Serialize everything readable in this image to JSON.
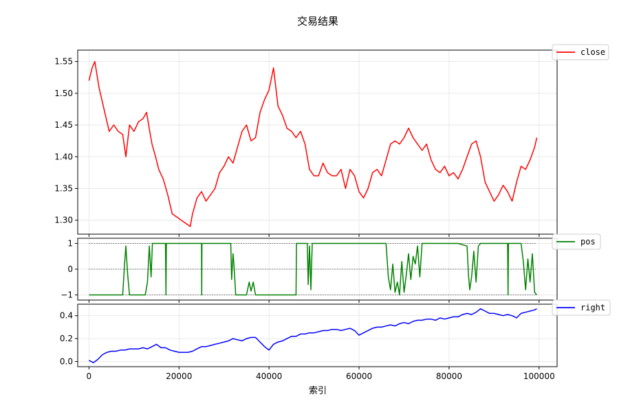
{
  "figure": {
    "title": "交易结果",
    "xlabel": "索引"
  },
  "chart_data": [
    {
      "type": "line",
      "name": "close-panel",
      "xlim": [
        -2500,
        104000
      ],
      "ylim": [
        1.278,
        1.568
      ],
      "yticks": [
        1.3,
        1.35,
        1.4,
        1.45,
        1.5,
        1.55
      ],
      "ytick_labels": [
        "1.30",
        "1.35",
        "1.40",
        "1.45",
        "1.50",
        "1.55"
      ],
      "grid": true,
      "legend_position": "outside-top-right",
      "series": [
        {
          "name": "close",
          "color": "#ff0000",
          "x": [
            0,
            700,
            1300,
            2200,
            3500,
            4500,
            5500,
            6500,
            7500,
            8200,
            9000,
            10000,
            11000,
            12000,
            12800,
            13500,
            14000,
            14800,
            15500,
            16500,
            17500,
            18500,
            19500,
            20500,
            21500,
            22500,
            23000,
            24000,
            25000,
            26000,
            27000,
            28000,
            29000,
            30000,
            31000,
            32000,
            33000,
            34000,
            35000,
            36000,
            37000,
            38000,
            39000,
            40000,
            41000,
            42000,
            43000,
            44000,
            45000,
            46000,
            47000,
            48000,
            49000,
            50000,
            51000,
            52000,
            53000,
            54000,
            55000,
            56000,
            57000,
            58000,
            59000,
            60000,
            61000,
            62000,
            63000,
            64000,
            65000,
            66000,
            67000,
            68000,
            69000,
            70000,
            71000,
            72000,
            73000,
            74000,
            75000,
            76000,
            77000,
            78000,
            79000,
            80000,
            81000,
            82000,
            83000,
            84000,
            85000,
            86000,
            87000,
            88000,
            89000,
            90000,
            91000,
            92000,
            93000,
            94000,
            95000,
            96000,
            97000,
            98000,
            99000,
            99500
          ],
          "y": [
            1.52,
            1.54,
            1.55,
            1.51,
            1.47,
            1.44,
            1.45,
            1.44,
            1.435,
            1.4,
            1.45,
            1.44,
            1.455,
            1.46,
            1.47,
            1.44,
            1.42,
            1.4,
            1.38,
            1.365,
            1.34,
            1.31,
            1.305,
            1.3,
            1.295,
            1.29,
            1.31,
            1.335,
            1.345,
            1.33,
            1.34,
            1.35,
            1.375,
            1.385,
            1.4,
            1.39,
            1.415,
            1.44,
            1.45,
            1.425,
            1.43,
            1.47,
            1.49,
            1.505,
            1.54,
            1.48,
            1.465,
            1.445,
            1.44,
            1.43,
            1.44,
            1.42,
            1.38,
            1.37,
            1.37,
            1.39,
            1.375,
            1.37,
            1.37,
            1.38,
            1.35,
            1.38,
            1.37,
            1.345,
            1.335,
            1.35,
            1.375,
            1.38,
            1.37,
            1.395,
            1.42,
            1.425,
            1.42,
            1.43,
            1.445,
            1.43,
            1.42,
            1.41,
            1.42,
            1.395,
            1.38,
            1.375,
            1.385,
            1.37,
            1.375,
            1.365,
            1.38,
            1.4,
            1.42,
            1.425,
            1.4,
            1.36,
            1.345,
            1.33,
            1.34,
            1.355,
            1.345,
            1.33,
            1.36,
            1.385,
            1.38,
            1.395,
            1.415,
            1.43
          ]
        }
      ]
    },
    {
      "type": "line",
      "name": "pos-panel",
      "xlim": [
        -2500,
        104000
      ],
      "ylim": [
        -1.2,
        1.2
      ],
      "yticks": [
        -1,
        0,
        1
      ],
      "ytick_labels": [
        "−1",
        "0",
        "1"
      ],
      "reference_lines": [
        -1,
        0,
        1
      ],
      "grid": true,
      "legend_position": "outside-top-right",
      "series": [
        {
          "name": "pos",
          "color": "#008000",
          "x": [
            0,
            7500,
            7900,
            8200,
            8600,
            9000,
            12500,
            13000,
            13400,
            13800,
            14100,
            14400,
            17000,
            17100,
            17200,
            25000,
            25050,
            25100,
            30000,
            31500,
            31700,
            32000,
            32200,
            32600,
            35000,
            35600,
            36000,
            36500,
            37000,
            46000,
            46100,
            46200,
            48500,
            48700,
            49000,
            49300,
            49600,
            66000,
            66500,
            67000,
            67500,
            68000,
            68500,
            69000,
            69500,
            70000,
            70500,
            71000,
            71500,
            72000,
            72500,
            73000,
            73500,
            74000,
            74500,
            75000,
            76000,
            78000,
            80000,
            82000,
            84000,
            84300,
            84600,
            85000,
            85500,
            86000,
            86500,
            87000,
            90000,
            93000,
            93100,
            93200,
            96000,
            96500,
            97000,
            97500,
            98000,
            98500,
            99000,
            99500
          ],
          "y": [
            -1,
            -1,
            0.2,
            0.9,
            -0.2,
            -1,
            -1,
            -0.5,
            0.9,
            -0.3,
            1,
            1,
            1,
            -1,
            1,
            1,
            -1,
            1,
            1,
            1,
            -0.4,
            0.6,
            0.2,
            -1,
            -1,
            -0.5,
            -0.85,
            -0.5,
            -1,
            -1,
            1,
            1,
            1,
            -0.6,
            0.9,
            -0.8,
            1,
            1,
            -0.3,
            -0.8,
            0.2,
            -0.9,
            -0.5,
            -1,
            0.3,
            -0.9,
            -0.2,
            0.6,
            -0.4,
            0.5,
            0.2,
            0.9,
            -0.3,
            1,
            1,
            1,
            1,
            1,
            1,
            1,
            0.9,
            -0.2,
            -0.8,
            -0.3,
            0.7,
            -0.5,
            0.9,
            1,
            1,
            1,
            -1,
            1,
            1,
            0.3,
            -0.8,
            0.4,
            -0.5,
            0.6,
            -0.9,
            -1
          ]
        }
      ]
    },
    {
      "type": "line",
      "name": "right-panel",
      "xlim": [
        -2500,
        104000
      ],
      "ylim": [
        -0.045,
        0.5
      ],
      "yticks": [
        0.0,
        0.2,
        0.4
      ],
      "ytick_labels": [
        "0.0",
        "0.2",
        "0.4"
      ],
      "xticks": [
        0,
        20000,
        40000,
        60000,
        80000,
        100000
      ],
      "xtick_labels": [
        "0",
        "20000",
        "40000",
        "60000",
        "80000",
        "100000"
      ],
      "grid": true,
      "legend_position": "outside-top-right",
      "series": [
        {
          "name": "right",
          "color": "#0000ff",
          "x": [
            0,
            1000,
            2000,
            3000,
            4000,
            5000,
            6000,
            7000,
            8000,
            9000,
            10000,
            11000,
            12000,
            13000,
            14000,
            15000,
            16000,
            17000,
            18000,
            19000,
            20000,
            21000,
            22000,
            23000,
            24000,
            25000,
            26000,
            27000,
            28000,
            29000,
            30000,
            31000,
            32000,
            33000,
            34000,
            35000,
            36000,
            37000,
            38000,
            39000,
            40000,
            41000,
            42000,
            43000,
            44000,
            45000,
            46000,
            47000,
            48000,
            49000,
            50000,
            51000,
            52000,
            53000,
            54000,
            55000,
            56000,
            57000,
            58000,
            59000,
            60000,
            61000,
            62000,
            63000,
            64000,
            65000,
            66000,
            67000,
            68000,
            69000,
            70000,
            71000,
            72000,
            73000,
            74000,
            75000,
            76000,
            77000,
            78000,
            79000,
            80000,
            81000,
            82000,
            83000,
            84000,
            85000,
            86000,
            87000,
            88000,
            89000,
            90000,
            91000,
            92000,
            93000,
            94000,
            95000,
            96000,
            97000,
            98000,
            99000,
            99500
          ],
          "y": [
            0.01,
            -0.01,
            0.02,
            0.06,
            0.08,
            0.09,
            0.09,
            0.1,
            0.1,
            0.11,
            0.11,
            0.11,
            0.12,
            0.11,
            0.13,
            0.15,
            0.12,
            0.12,
            0.1,
            0.09,
            0.08,
            0.08,
            0.08,
            0.09,
            0.11,
            0.13,
            0.13,
            0.14,
            0.15,
            0.16,
            0.17,
            0.18,
            0.2,
            0.19,
            0.18,
            0.2,
            0.21,
            0.21,
            0.17,
            0.13,
            0.1,
            0.15,
            0.17,
            0.18,
            0.2,
            0.22,
            0.22,
            0.24,
            0.24,
            0.25,
            0.25,
            0.26,
            0.27,
            0.27,
            0.28,
            0.28,
            0.27,
            0.28,
            0.29,
            0.27,
            0.23,
            0.25,
            0.27,
            0.29,
            0.3,
            0.3,
            0.31,
            0.32,
            0.31,
            0.33,
            0.34,
            0.33,
            0.35,
            0.36,
            0.36,
            0.37,
            0.37,
            0.36,
            0.38,
            0.37,
            0.38,
            0.39,
            0.39,
            0.41,
            0.42,
            0.41,
            0.43,
            0.46,
            0.44,
            0.42,
            0.42,
            0.41,
            0.4,
            0.41,
            0.4,
            0.38,
            0.42,
            0.43,
            0.44,
            0.45,
            0.46
          ]
        }
      ]
    }
  ]
}
